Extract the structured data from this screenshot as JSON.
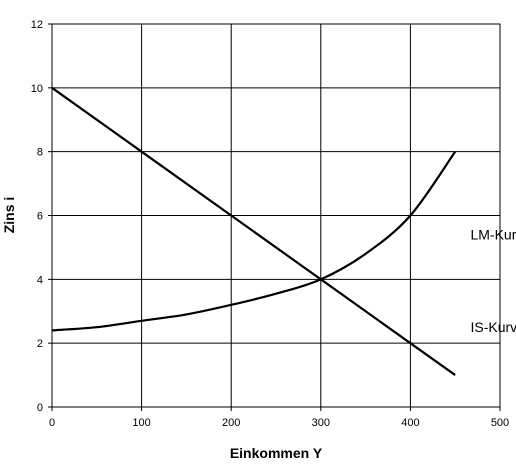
{
  "chart_data": {
    "type": "line",
    "title": "",
    "xlabel": "Einkommen Y",
    "ylabel": "Zins i",
    "xlim": [
      0,
      500
    ],
    "ylim": [
      0,
      12
    ],
    "xticks": [
      0,
      100,
      200,
      300,
      400,
      500
    ],
    "yticks": [
      0,
      2,
      4,
      6,
      8,
      10,
      12
    ],
    "grid": true,
    "series": [
      {
        "name": "LM-Kurve",
        "x": [
          0,
          50,
          100,
          150,
          200,
          250,
          300,
          350,
          400,
          450
        ],
        "y": [
          2.4,
          2.5,
          2.7,
          2.9,
          3.2,
          3.55,
          4.0,
          4.8,
          6.0,
          8.0
        ]
      },
      {
        "name": "IS-Kurve",
        "x": [
          0,
          100,
          200,
          300,
          400,
          450
        ],
        "y": [
          10,
          8,
          6,
          4,
          2,
          1
        ]
      }
    ],
    "annotations": [
      {
        "text": "LM-Kurve",
        "x": 457,
        "y": 5.4
      },
      {
        "text": "IS-Kurve",
        "x": 457,
        "y": 2.5
      }
    ]
  }
}
